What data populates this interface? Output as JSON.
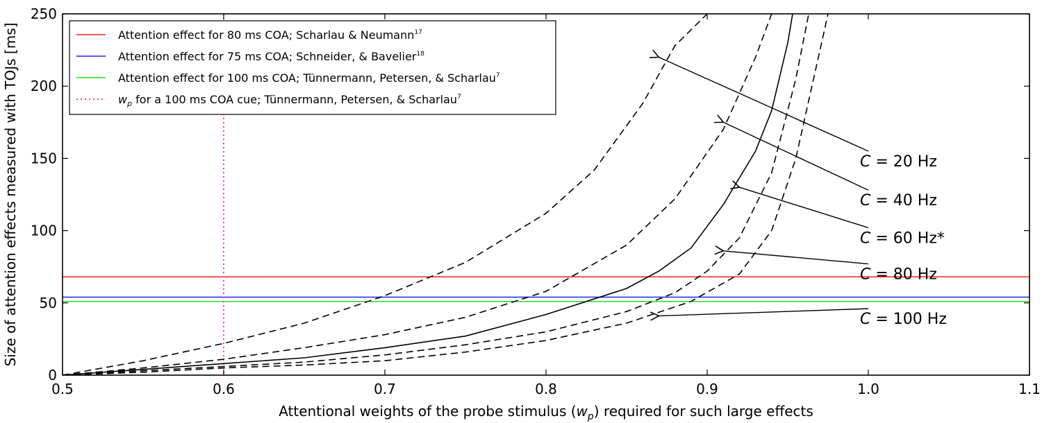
{
  "chart_data": {
    "type": "line",
    "title": "",
    "xlabel": "Attentional weights of the probe stimulus (",
    "xlabel_symbol": "w",
    "xlabel_sub": "p",
    "xlabel_tail": ") required for such large effects",
    "ylabel": "Size of attention effects measured with TOJs [ms]",
    "xlim": [
      0.5,
      1.1
    ],
    "ylim": [
      0,
      250
    ],
    "xticks": [
      0.5,
      0.6,
      0.7,
      0.8,
      0.9,
      1.0,
      1.1
    ],
    "xtick_labels": [
      "0.5",
      "0.6",
      "0.7",
      "0.8",
      "0.9",
      "1.0",
      "1.1"
    ],
    "yticks": [
      0,
      50,
      100,
      150,
      200,
      250
    ],
    "ytick_labels": [
      "0",
      "50",
      "100",
      "150",
      "200",
      "250"
    ],
    "grid": false,
    "hlines": [
      {
        "name": "Attention effect for  80 ms COA; Scharlau & Neumann",
        "sup": "17",
        "y": 68,
        "color": "#ee2222"
      },
      {
        "name": "Attention effect for  75 ms COA; Schneider, & Bavelier",
        "sup": "18",
        "y": 54,
        "color": "#2222ee"
      },
      {
        "name": "Attention effect for 100 ms COA; Tünnermann, Petersen, & Scharlau",
        "sup": "7",
        "y": 51,
        "color": "#22dd22"
      }
    ],
    "vlines": [
      {
        "name_symbol": "w",
        "name_sub": "p",
        "name": " for a 100 ms COA cue; Tünnermann, Petersen, & Scharlau",
        "sup": "7",
        "x": 0.6,
        "color": "#ff33cc",
        "style": "dotted"
      }
    ],
    "series": [
      {
        "name": "C = 20 Hz",
        "label": "C",
        "label_rest": " = 20 Hz",
        "style": "dashed",
        "x": [
          0.5,
          0.55,
          0.6,
          0.65,
          0.7,
          0.75,
          0.8,
          0.83,
          0.86,
          0.88,
          0.9
        ],
        "y": [
          0,
          10,
          22,
          36,
          55,
          78,
          112,
          142,
          188,
          228,
          250
        ]
      },
      {
        "name": "C = 40 Hz",
        "label": "C",
        "label_rest": " = 40 Hz",
        "style": "dashed",
        "x": [
          0.5,
          0.55,
          0.6,
          0.65,
          0.7,
          0.75,
          0.8,
          0.85,
          0.88,
          0.91,
          0.93,
          0.94
        ],
        "y": [
          0,
          5,
          11,
          19,
          28,
          40,
          58,
          90,
          122,
          170,
          220,
          250
        ]
      },
      {
        "name": "C = 60 Hz*",
        "label": "C",
        "label_rest": " = 60 Hz*",
        "style": "solid",
        "x": [
          0.5,
          0.55,
          0.6,
          0.65,
          0.7,
          0.75,
          0.8,
          0.85,
          0.87,
          0.89,
          0.91,
          0.93,
          0.94,
          0.95,
          0.953
        ],
        "y": [
          0,
          4,
          8,
          12,
          19,
          27,
          42,
          60,
          72,
          88,
          118,
          155,
          183,
          230,
          250
        ]
      },
      {
        "name": "C = 80 Hz",
        "label": "C",
        "label_rest": " = 80 Hz",
        "style": "dashed",
        "x": [
          0.5,
          0.55,
          0.6,
          0.65,
          0.7,
          0.75,
          0.8,
          0.85,
          0.88,
          0.9,
          0.92,
          0.94,
          0.955,
          0.963
        ],
        "y": [
          0,
          3,
          6,
          9,
          14,
          21,
          30,
          44,
          57,
          72,
          95,
          140,
          205,
          250
        ]
      },
      {
        "name": "C = 100 Hz",
        "label": "C",
        "label_rest": " = 100 Hz",
        "style": "dashed",
        "x": [
          0.5,
          0.55,
          0.6,
          0.65,
          0.7,
          0.75,
          0.8,
          0.85,
          0.89,
          0.92,
          0.94,
          0.955,
          0.968,
          0.975
        ],
        "y": [
          0,
          2,
          5,
          7,
          10,
          16,
          24,
          36,
          51,
          70,
          100,
          150,
          215,
          250
        ]
      }
    ],
    "annotations": [
      {
        "series": "C = 20 Hz",
        "arrow_to": [
          0.87,
          220
        ],
        "text_at": [
          1.0,
          155
        ]
      },
      {
        "series": "C = 40 Hz",
        "arrow_to": [
          0.91,
          175
        ],
        "text_at": [
          1.0,
          128
        ]
      },
      {
        "series": "C = 60 Hz*",
        "arrow_to": [
          0.92,
          130
        ],
        "text_at": [
          1.0,
          102
        ]
      },
      {
        "series": "C = 80 Hz",
        "arrow_to": [
          0.91,
          86
        ],
        "text_at": [
          1.0,
          77
        ]
      },
      {
        "series": "C = 100 Hz",
        "arrow_to": [
          0.87,
          41
        ],
        "text_at": [
          1.0,
          46
        ]
      }
    ],
    "legend_position": "top-left"
  }
}
